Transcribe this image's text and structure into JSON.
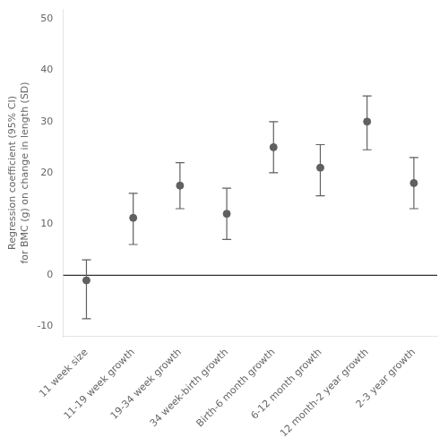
{
  "chart_data": {
    "type": "scatter",
    "categories": [
      "11 week size",
      "11-19 week growth",
      "19-34 week growth",
      "34 week-birth growth",
      "Birth-6 month growth",
      "6-12 month growth",
      "12 month-2 year growth",
      "2-3 year growth"
    ],
    "values": [
      -1.0,
      11.2,
      17.5,
      12.0,
      25.0,
      21.0,
      30.0,
      18.0
    ],
    "ci_lower": [
      -8.5,
      6.0,
      13.0,
      7.0,
      20.0,
      15.5,
      24.5,
      13.0
    ],
    "ci_upper": [
      3.0,
      16.0,
      22.0,
      17.0,
      30.0,
      25.5,
      35.0,
      23.0
    ],
    "ylabel": "Regression coefficient (95% CI)\nfor BMC (g) on change in length (SD)",
    "ylim": [
      -12,
      52
    ],
    "yticks": [
      -10,
      0,
      10,
      20,
      30,
      40,
      50
    ],
    "color": "#606060",
    "grid": false
  }
}
